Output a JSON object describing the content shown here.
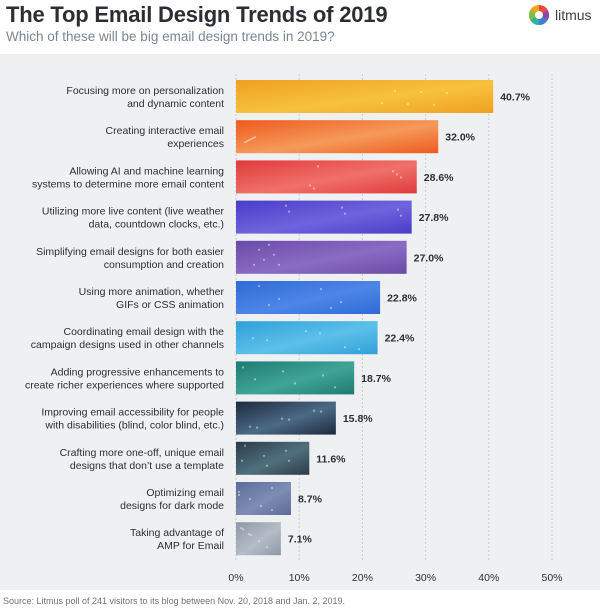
{
  "header": {
    "title": "The Top Email Design Trends of 2019",
    "subtitle": "Which of these will be big email design trends in 2019?",
    "brand": "litmus"
  },
  "source": "Source: Litmus poll of 241 visitors to its blog between Nov. 20, 2018 and Jan. 2, 2019.",
  "chart_data": {
    "type": "bar",
    "orientation": "horizontal",
    "title": "The Top Email Design Trends of 2019",
    "subtitle": "Which of these will be big email design trends in 2019?",
    "xlabel": "",
    "ylabel": "",
    "xlim": [
      0,
      50
    ],
    "x_ticks": [
      "0%",
      "10%",
      "20%",
      "30%",
      "40%",
      "50%"
    ],
    "grid": "vertical dashed",
    "categories": [
      [
        "Focusing more on personalization",
        "and dynamic content"
      ],
      [
        "Creating interactive email",
        "experiences"
      ],
      [
        "Allowing AI and machine learning",
        "systems to determine more email content"
      ],
      [
        "Utilizing more live content (live weather",
        "data, countdown clocks, etc.)"
      ],
      [
        "Simplifying email designs for both easier",
        "consumption and creation"
      ],
      [
        "Using more animation, whether",
        "GIFs or CSS animation"
      ],
      [
        "Coordinating email design with the",
        "campaign designs used in other channels"
      ],
      [
        "Adding progressive enhancements to",
        "create richer experiences where supported"
      ],
      [
        "Improving email accessibility for people",
        "with disabilities (blind, color blind, etc.)"
      ],
      [
        "Crafting more one-off, unique email",
        "designs that don’t use a template"
      ],
      [
        "Optimizing email",
        "designs for dark mode"
      ],
      [
        "Taking advantage of",
        "AMP for Email"
      ]
    ],
    "values": [
      40.7,
      32.0,
      28.6,
      27.8,
      27.0,
      22.8,
      22.4,
      18.7,
      15.8,
      11.6,
      8.7,
      7.1
    ],
    "value_labels": [
      "40.7%",
      "32.0%",
      "28.6%",
      "27.8%",
      "27.0%",
      "22.8%",
      "22.4%",
      "18.7%",
      "15.8%",
      "11.6%",
      "8.7%",
      "7.1%"
    ],
    "bar_colors": [
      [
        "#f0a020",
        "#f6c23e"
      ],
      [
        "#ee5a1e",
        "#f59a5a"
      ],
      [
        "#e03a3a",
        "#f0716a"
      ],
      [
        "#4a3cc8",
        "#6f64de"
      ],
      [
        "#6a4aa8",
        "#8b6cc4"
      ],
      [
        "#2f6bd8",
        "#4d86e6"
      ],
      [
        "#2fa0d8",
        "#5cc0ea"
      ],
      [
        "#1f7a72",
        "#3fa596"
      ],
      [
        "#1e2a3e",
        "#4b6a86"
      ],
      [
        "#2c3a48",
        "#50707e"
      ],
      [
        "#5b6c98",
        "#7d8db4"
      ],
      [
        "#8e98a6",
        "#b4bcc6"
      ]
    ]
  }
}
